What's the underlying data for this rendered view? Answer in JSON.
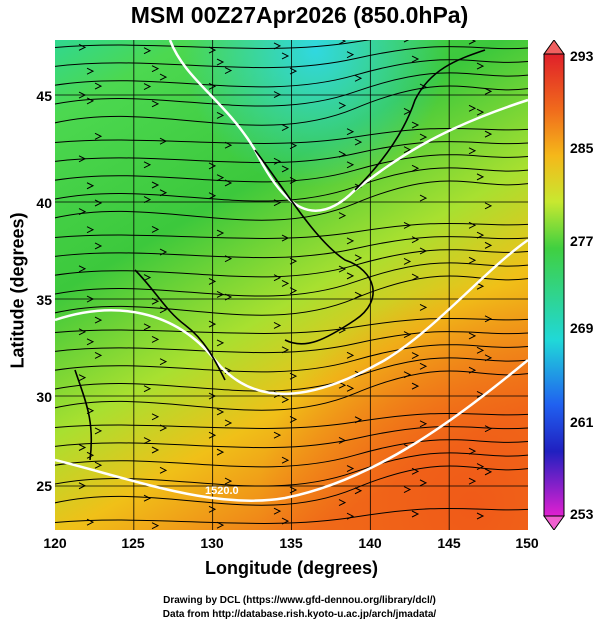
{
  "title": "MSM 00Z27Apr2026 (850.0hPa)",
  "xlabel": "Longitude (degrees)",
  "ylabel": "Latitude  (degrees)",
  "xticks": [
    "120",
    "125",
    "130",
    "135",
    "140",
    "145",
    "150"
  ],
  "yticks": [
    "45",
    "40",
    "35",
    "30",
    "25"
  ],
  "colorbar": {
    "labels": [
      "293",
      "285",
      "277",
      "269",
      "261",
      "253"
    ],
    "colors": [
      "#e0202a",
      "#f06a1c",
      "#f5b81a",
      "#9be03a",
      "#22c440",
      "#20d8d8",
      "#2060f0",
      "#2020c0",
      "#c020d0"
    ]
  },
  "contour_labels": [
    "1520.0"
  ],
  "credits": {
    "line1": "Drawing by DCL (https://www.gfd-dennou.org/library/dcl/)",
    "line2": "Data from http://database.rish.kyoto-u.ac.jp/arch/jmadata/"
  }
}
